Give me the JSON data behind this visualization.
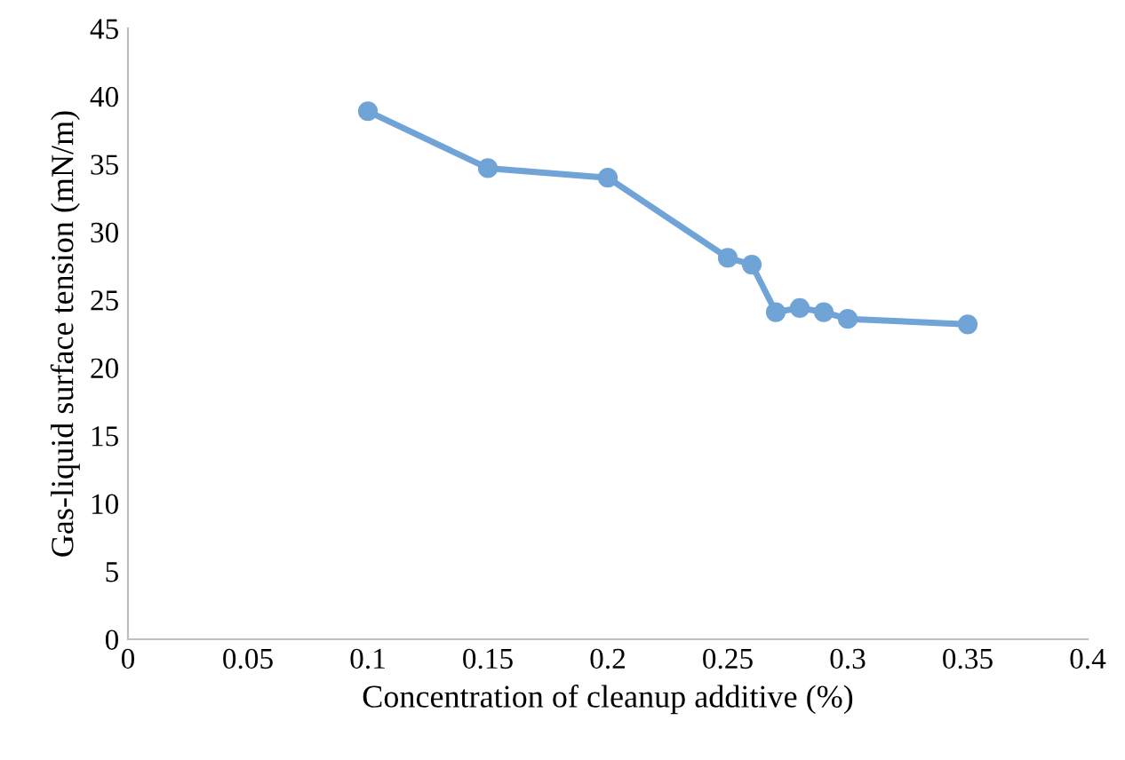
{
  "chart_data": {
    "type": "line",
    "xlabel": "Concentration of cleanup additive (%)",
    "ylabel": "Gas-liquid surface tension (mN/m)",
    "x": [
      0.1,
      0.15,
      0.2,
      0.25,
      0.26,
      0.27,
      0.28,
      0.29,
      0.3,
      0.35
    ],
    "series": [
      {
        "color": "#70a3d6",
        "values": [
          38.9,
          34.7,
          34.0,
          28.1,
          27.6,
          24.1,
          24.4,
          24.1,
          23.6,
          23.2
        ]
      }
    ],
    "xlim": [
      0,
      0.4
    ],
    "xticks": [
      0,
      0.05,
      0.1,
      0.15,
      0.2,
      0.25,
      0.3,
      0.35,
      0.4
    ],
    "ylim": [
      0,
      45
    ],
    "yticks": [
      0,
      5,
      10,
      15,
      20,
      25,
      30,
      35,
      40,
      45
    ],
    "marker": "circle",
    "line_style": "solid",
    "grid": false,
    "legend": false
  }
}
